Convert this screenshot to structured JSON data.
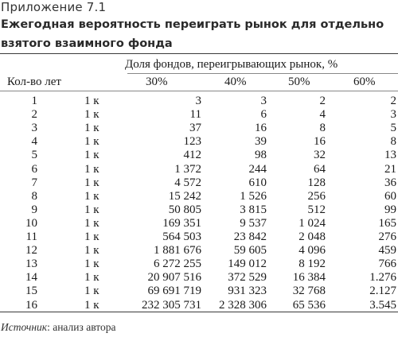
{
  "appendix_label": "Приложение 7.1",
  "title": "Ежегодная вероятность переиграть рынок для отдельно взятого взаимного фонда",
  "table": {
    "group_header": "Доля фондов, переигрывающих рынок, %",
    "row_header": "Кол-во лет",
    "columns": [
      "30%",
      "40%",
      "50%",
      "60%"
    ],
    "rows": [
      {
        "years": "1",
        "unit": "1 к",
        "values": [
          "3",
          "3",
          "2",
          "2"
        ]
      },
      {
        "years": "2",
        "unit": "1 к",
        "values": [
          "11",
          "6",
          "4",
          "3"
        ]
      },
      {
        "years": "3",
        "unit": "1 к",
        "values": [
          "37",
          "16",
          "8",
          "5"
        ]
      },
      {
        "years": "4",
        "unit": "1 к",
        "values": [
          "123",
          "39",
          "16",
          "8"
        ]
      },
      {
        "years": "5",
        "unit": "1 к",
        "values": [
          "412",
          "98",
          "32",
          "13"
        ]
      },
      {
        "years": "6",
        "unit": "1 к",
        "values": [
          "1 372",
          "244",
          "64",
          "21"
        ]
      },
      {
        "years": "7",
        "unit": "1 к",
        "values": [
          "4 572",
          "610",
          "128",
          "36"
        ]
      },
      {
        "years": "8",
        "unit": "1 к",
        "values": [
          "15 242",
          "1 526",
          "256",
          "60"
        ]
      },
      {
        "years": "9",
        "unit": "1 к",
        "values": [
          "50 805",
          "3 815",
          "512",
          "99"
        ]
      },
      {
        "years": "10",
        "unit": "1 к",
        "values": [
          "169 351",
          "9 537",
          "1 024",
          "165"
        ]
      },
      {
        "years": "11",
        "unit": "1 к",
        "values": [
          "564 503",
          "23 842",
          "2 048",
          "276"
        ]
      },
      {
        "years": "12",
        "unit": "1 к",
        "values": [
          "1 881 676",
          "59 605",
          "4 096",
          "459"
        ]
      },
      {
        "years": "13",
        "unit": "1 к",
        "values": [
          "6 272 255",
          "149 012",
          "8 192",
          "766"
        ]
      },
      {
        "years": "14",
        "unit": "1 к",
        "values": [
          "20 907 516",
          "372 529",
          "16 384",
          "1.276"
        ]
      },
      {
        "years": "15",
        "unit": "1 к",
        "values": [
          "69 691 719",
          "931 323",
          "32 768",
          "2.127"
        ]
      },
      {
        "years": "16",
        "unit": "1 к",
        "values": [
          "232 305 731",
          "2 328 306",
          "65 536",
          "3.545"
        ]
      }
    ]
  },
  "source": {
    "label": "Источник",
    "text": ": анализ автора"
  }
}
